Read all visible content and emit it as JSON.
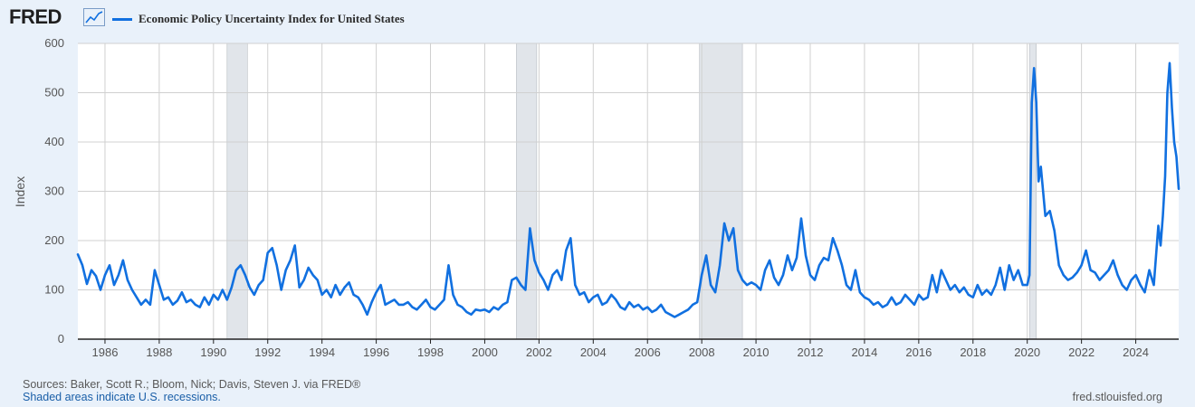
{
  "header": {
    "logo_text": "FRED",
    "logo_icon": "line-chart-icon"
  },
  "colors": {
    "series": "#1170e0",
    "recession": "#e1e5ea",
    "background": "#e9f1fa",
    "plot": "#ffffff",
    "grid": "#d0d0d0"
  },
  "chart_data": {
    "type": "line",
    "title": "",
    "xlabel": "",
    "ylabel": "Index",
    "xlim": [
      "1985-01",
      "2025-08"
    ],
    "ylim": [
      0,
      600
    ],
    "grid": true,
    "legend_position": "top-left",
    "x_ticks": [
      "1986",
      "1988",
      "1990",
      "1992",
      "1994",
      "1996",
      "1998",
      "2000",
      "2002",
      "2004",
      "2006",
      "2008",
      "2010",
      "2012",
      "2014",
      "2016",
      "2018",
      "2020",
      "2022",
      "2024"
    ],
    "y_ticks": [
      0,
      100,
      200,
      300,
      400,
      500,
      600
    ],
    "recessions": [
      {
        "start": "1990-07",
        "end": "1991-03"
      },
      {
        "start": "2001-03",
        "end": "2001-11"
      },
      {
        "start": "2007-12",
        "end": "2009-06"
      },
      {
        "start": "2020-02",
        "end": "2020-04"
      }
    ],
    "series": [
      {
        "name": "Economic Policy Uncertainty Index for United States",
        "points": [
          [
            "1985-01",
            172
          ],
          [
            "1985-03",
            150
          ],
          [
            "1985-05",
            112
          ],
          [
            "1985-07",
            140
          ],
          [
            "1985-09",
            128
          ],
          [
            "1985-11",
            100
          ],
          [
            "1986-01",
            130
          ],
          [
            "1986-03",
            150
          ],
          [
            "1986-05",
            110
          ],
          [
            "1986-07",
            130
          ],
          [
            "1986-09",
            160
          ],
          [
            "1986-11",
            120
          ],
          [
            "1987-01",
            100
          ],
          [
            "1987-03",
            85
          ],
          [
            "1987-05",
            70
          ],
          [
            "1987-07",
            80
          ],
          [
            "1987-09",
            70
          ],
          [
            "1987-11",
            140
          ],
          [
            "1988-01",
            110
          ],
          [
            "1988-03",
            80
          ],
          [
            "1988-05",
            85
          ],
          [
            "1988-07",
            70
          ],
          [
            "1988-09",
            78
          ],
          [
            "1988-11",
            95
          ],
          [
            "1989-01",
            75
          ],
          [
            "1989-03",
            80
          ],
          [
            "1989-05",
            70
          ],
          [
            "1989-07",
            65
          ],
          [
            "1989-09",
            85
          ],
          [
            "1989-11",
            70
          ],
          [
            "1990-01",
            90
          ],
          [
            "1990-03",
            80
          ],
          [
            "1990-05",
            100
          ],
          [
            "1990-07",
            80
          ],
          [
            "1990-09",
            105
          ],
          [
            "1990-11",
            140
          ],
          [
            "1991-01",
            150
          ],
          [
            "1991-03",
            130
          ],
          [
            "1991-05",
            105
          ],
          [
            "1991-07",
            90
          ],
          [
            "1991-09",
            110
          ],
          [
            "1991-11",
            120
          ],
          [
            "1992-01",
            175
          ],
          [
            "1992-03",
            185
          ],
          [
            "1992-05",
            150
          ],
          [
            "1992-07",
            100
          ],
          [
            "1992-09",
            140
          ],
          [
            "1992-11",
            160
          ],
          [
            "1993-01",
            190
          ],
          [
            "1993-03",
            105
          ],
          [
            "1993-05",
            120
          ],
          [
            "1993-07",
            145
          ],
          [
            "1993-09",
            130
          ],
          [
            "1993-11",
            120
          ],
          [
            "1994-01",
            90
          ],
          [
            "1994-03",
            100
          ],
          [
            "1994-05",
            85
          ],
          [
            "1994-07",
            110
          ],
          [
            "1994-09",
            90
          ],
          [
            "1994-11",
            105
          ],
          [
            "1995-01",
            115
          ],
          [
            "1995-03",
            90
          ],
          [
            "1995-05",
            85
          ],
          [
            "1995-07",
            70
          ],
          [
            "1995-09",
            50
          ],
          [
            "1995-11",
            75
          ],
          [
            "1996-01",
            95
          ],
          [
            "1996-03",
            110
          ],
          [
            "1996-05",
            70
          ],
          [
            "1996-07",
            75
          ],
          [
            "1996-09",
            80
          ],
          [
            "1996-11",
            70
          ],
          [
            "1997-01",
            70
          ],
          [
            "1997-03",
            75
          ],
          [
            "1997-05",
            65
          ],
          [
            "1997-07",
            60
          ],
          [
            "1997-09",
            70
          ],
          [
            "1997-11",
            80
          ],
          [
            "1998-01",
            65
          ],
          [
            "1998-03",
            60
          ],
          [
            "1998-05",
            70
          ],
          [
            "1998-07",
            80
          ],
          [
            "1998-09",
            150
          ],
          [
            "1998-11",
            90
          ],
          [
            "1999-01",
            70
          ],
          [
            "1999-03",
            65
          ],
          [
            "1999-05",
            55
          ],
          [
            "1999-07",
            50
          ],
          [
            "1999-09",
            60
          ],
          [
            "1999-11",
            58
          ],
          [
            "2000-01",
            60
          ],
          [
            "2000-03",
            55
          ],
          [
            "2000-05",
            65
          ],
          [
            "2000-07",
            60
          ],
          [
            "2000-09",
            70
          ],
          [
            "2000-11",
            75
          ],
          [
            "2001-01",
            120
          ],
          [
            "2001-03",
            125
          ],
          [
            "2001-05",
            110
          ],
          [
            "2001-07",
            100
          ],
          [
            "2001-09",
            225
          ],
          [
            "2001-11",
            160
          ],
          [
            "2002-01",
            135
          ],
          [
            "2002-03",
            120
          ],
          [
            "2002-05",
            100
          ],
          [
            "2002-07",
            130
          ],
          [
            "2002-09",
            140
          ],
          [
            "2002-11",
            120
          ],
          [
            "2003-01",
            180
          ],
          [
            "2003-03",
            205
          ],
          [
            "2003-05",
            110
          ],
          [
            "2003-07",
            90
          ],
          [
            "2003-09",
            95
          ],
          [
            "2003-11",
            75
          ],
          [
            "2004-01",
            85
          ],
          [
            "2004-03",
            90
          ],
          [
            "2004-05",
            70
          ],
          [
            "2004-07",
            75
          ],
          [
            "2004-09",
            90
          ],
          [
            "2004-11",
            80
          ],
          [
            "2005-01",
            65
          ],
          [
            "2005-03",
            60
          ],
          [
            "2005-05",
            75
          ],
          [
            "2005-07",
            65
          ],
          [
            "2005-09",
            70
          ],
          [
            "2005-11",
            60
          ],
          [
            "2006-01",
            65
          ],
          [
            "2006-03",
            55
          ],
          [
            "2006-05",
            60
          ],
          [
            "2006-07",
            70
          ],
          [
            "2006-09",
            55
          ],
          [
            "2006-11",
            50
          ],
          [
            "2007-01",
            45
          ],
          [
            "2007-03",
            50
          ],
          [
            "2007-05",
            55
          ],
          [
            "2007-07",
            60
          ],
          [
            "2007-09",
            70
          ],
          [
            "2007-11",
            75
          ],
          [
            "2008-01",
            130
          ],
          [
            "2008-03",
            170
          ],
          [
            "2008-05",
            110
          ],
          [
            "2008-07",
            95
          ],
          [
            "2008-09",
            150
          ],
          [
            "2008-11",
            235
          ],
          [
            "2009-01",
            200
          ],
          [
            "2009-03",
            225
          ],
          [
            "2009-05",
            140
          ],
          [
            "2009-07",
            120
          ],
          [
            "2009-09",
            110
          ],
          [
            "2009-11",
            115
          ],
          [
            "2010-01",
            110
          ],
          [
            "2010-03",
            100
          ],
          [
            "2010-05",
            140
          ],
          [
            "2010-07",
            160
          ],
          [
            "2010-09",
            125
          ],
          [
            "2010-11",
            110
          ],
          [
            "2011-01",
            130
          ],
          [
            "2011-03",
            170
          ],
          [
            "2011-05",
            140
          ],
          [
            "2011-07",
            165
          ],
          [
            "2011-09",
            245
          ],
          [
            "2011-11",
            170
          ],
          [
            "2012-01",
            130
          ],
          [
            "2012-03",
            120
          ],
          [
            "2012-05",
            150
          ],
          [
            "2012-07",
            165
          ],
          [
            "2012-09",
            160
          ],
          [
            "2012-11",
            205
          ],
          [
            "2013-01",
            180
          ],
          [
            "2013-03",
            150
          ],
          [
            "2013-05",
            110
          ],
          [
            "2013-07",
            100
          ],
          [
            "2013-09",
            140
          ],
          [
            "2013-11",
            95
          ],
          [
            "2014-01",
            85
          ],
          [
            "2014-03",
            80
          ],
          [
            "2014-05",
            70
          ],
          [
            "2014-07",
            75
          ],
          [
            "2014-09",
            65
          ],
          [
            "2014-11",
            70
          ],
          [
            "2015-01",
            85
          ],
          [
            "2015-03",
            70
          ],
          [
            "2015-05",
            75
          ],
          [
            "2015-07",
            90
          ],
          [
            "2015-09",
            80
          ],
          [
            "2015-11",
            70
          ],
          [
            "2016-01",
            90
          ],
          [
            "2016-03",
            80
          ],
          [
            "2016-05",
            85
          ],
          [
            "2016-07",
            130
          ],
          [
            "2016-09",
            95
          ],
          [
            "2016-11",
            140
          ],
          [
            "2017-01",
            120
          ],
          [
            "2017-03",
            100
          ],
          [
            "2017-05",
            110
          ],
          [
            "2017-07",
            95
          ],
          [
            "2017-09",
            105
          ],
          [
            "2017-11",
            90
          ],
          [
            "2018-01",
            85
          ],
          [
            "2018-03",
            110
          ],
          [
            "2018-05",
            90
          ],
          [
            "2018-07",
            100
          ],
          [
            "2018-09",
            90
          ],
          [
            "2018-11",
            110
          ],
          [
            "2019-01",
            145
          ],
          [
            "2019-03",
            100
          ],
          [
            "2019-05",
            150
          ],
          [
            "2019-07",
            120
          ],
          [
            "2019-09",
            140
          ],
          [
            "2019-11",
            110
          ],
          [
            "2020-01",
            110
          ],
          [
            "2020-02",
            130
          ],
          [
            "2020-03",
            480
          ],
          [
            "2020-04",
            550
          ],
          [
            "2020-05",
            480
          ],
          [
            "2020-06",
            320
          ],
          [
            "2020-07",
            350
          ],
          [
            "2020-09",
            250
          ],
          [
            "2020-11",
            260
          ],
          [
            "2021-01",
            220
          ],
          [
            "2021-03",
            150
          ],
          [
            "2021-05",
            130
          ],
          [
            "2021-07",
            120
          ],
          [
            "2021-09",
            125
          ],
          [
            "2021-11",
            135
          ],
          [
            "2022-01",
            150
          ],
          [
            "2022-03",
            180
          ],
          [
            "2022-05",
            140
          ],
          [
            "2022-07",
            135
          ],
          [
            "2022-09",
            120
          ],
          [
            "2022-11",
            130
          ],
          [
            "2023-01",
            140
          ],
          [
            "2023-03",
            160
          ],
          [
            "2023-05",
            130
          ],
          [
            "2023-07",
            110
          ],
          [
            "2023-09",
            100
          ],
          [
            "2023-11",
            120
          ],
          [
            "2024-01",
            130
          ],
          [
            "2024-03",
            110
          ],
          [
            "2024-05",
            95
          ],
          [
            "2024-07",
            140
          ],
          [
            "2024-09",
            110
          ],
          [
            "2024-11",
            230
          ],
          [
            "2024-12",
            190
          ],
          [
            "2025-01",
            250
          ],
          [
            "2025-02",
            330
          ],
          [
            "2025-03",
            500
          ],
          [
            "2025-04",
            560
          ],
          [
            "2025-05",
            470
          ],
          [
            "2025-06",
            400
          ],
          [
            "2025-07",
            370
          ],
          [
            "2025-08",
            305
          ]
        ]
      }
    ]
  },
  "footer": {
    "sources": "Sources: Baker, Scott R.; Bloom, Nick; Davis, Steven J. via FRED®",
    "recession_note": "Shaded areas indicate U.S. recessions.",
    "url": "fred.stlouisfed.org"
  }
}
